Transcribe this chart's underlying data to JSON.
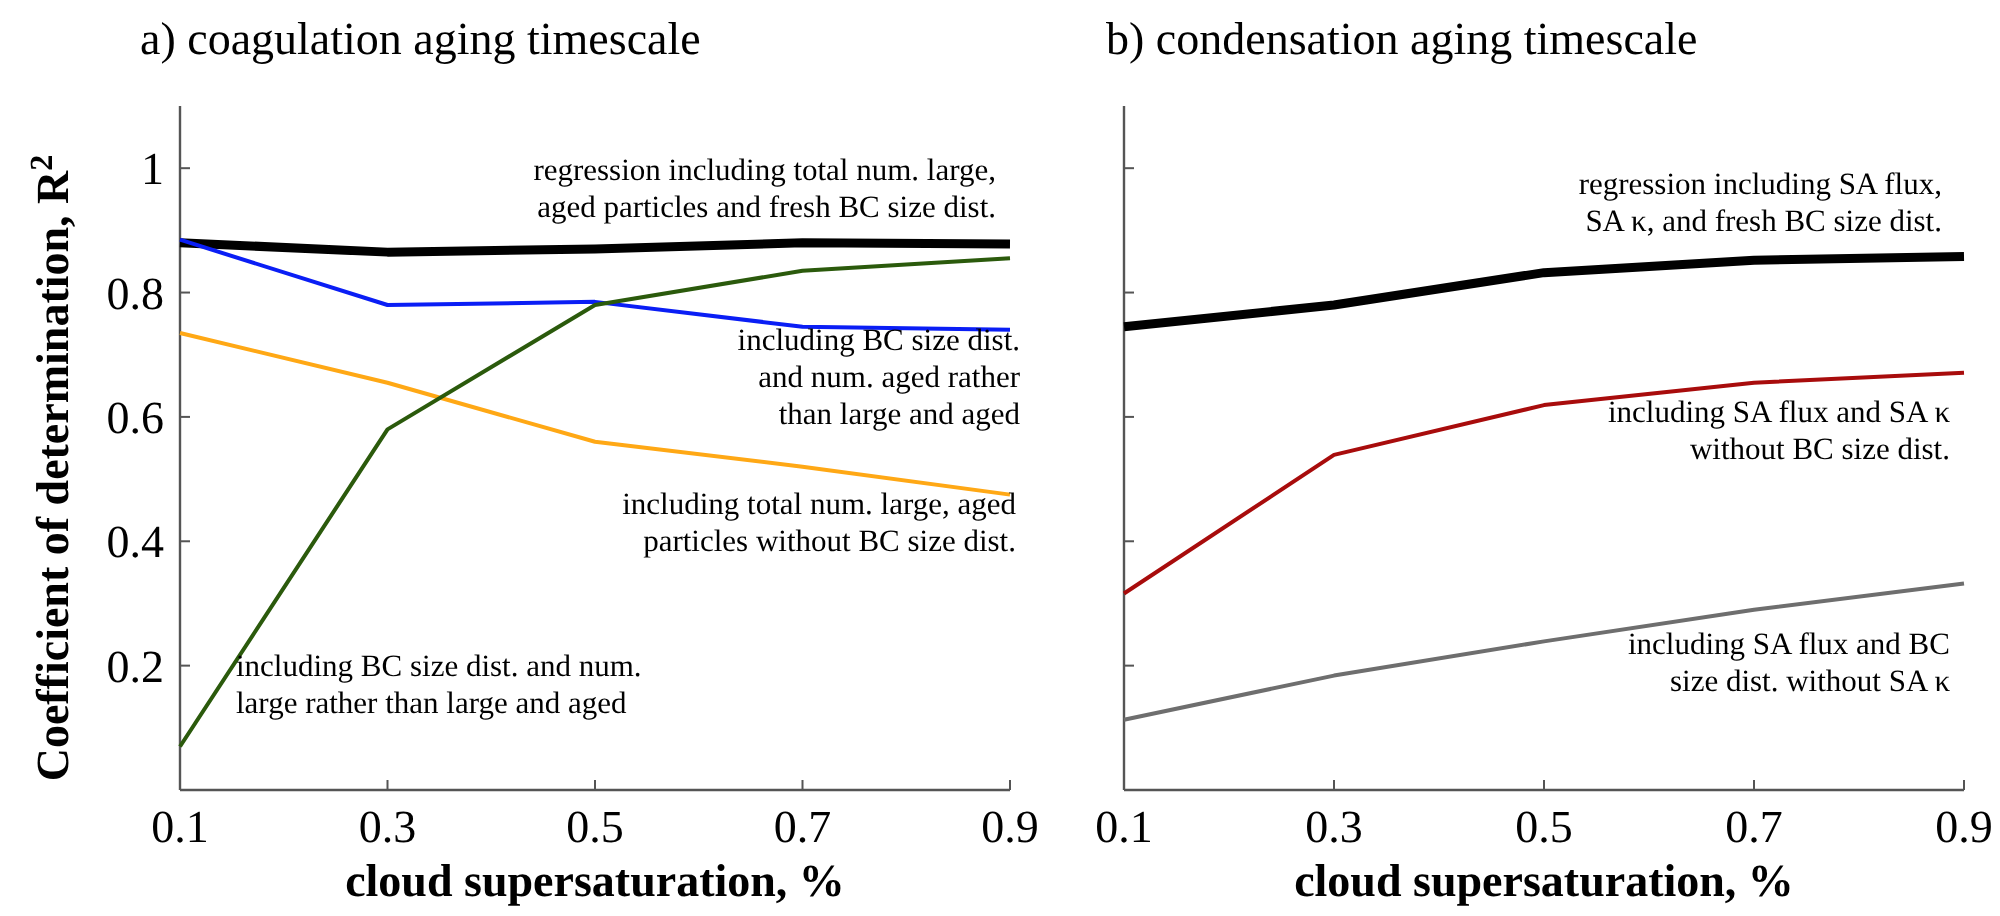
{
  "chart_data": [
    {
      "type": "line",
      "title": "a) coagulation aging timescale",
      "xlabel": "cloud supersaturation, %",
      "ylabel": "Coefficient of determination, R$^{2}$",
      "x": [
        0.1,
        0.3,
        0.5,
        0.7,
        0.9
      ],
      "xlim": [
        0.1,
        0.9
      ],
      "xticks": [
        0.1,
        0.3,
        0.5,
        0.7,
        0.9
      ],
      "ylim": [
        0,
        1.1
      ],
      "yticks": [
        0.2,
        0.4,
        0.6,
        0.8,
        1
      ],
      "grid": false,
      "marker": "none",
      "line_style": "solid",
      "series": [
        {
          "name": "regression including total num. large,\naged particles and fresh BC size dist.",
          "color": "#000000",
          "values": [
            0.88,
            0.865,
            0.87,
            0.88,
            0.878
          ]
        },
        {
          "name": "including BC size dist.\nand num. aged rather\nthan large and aged",
          "color": "#0a1ef5",
          "values": [
            0.885,
            0.78,
            0.785,
            0.745,
            0.74
          ]
        },
        {
          "name": "including total num. large, aged\nparticles without BC size dist.",
          "color": "#ffa815",
          "values": [
            0.735,
            0.655,
            0.56,
            0.52,
            0.475
          ]
        },
        {
          "name": "including BC size dist. and num.\nlarge rather than large and aged",
          "color": "#2b5a0c",
          "values": [
            0.07,
            0.58,
            0.78,
            0.835,
            0.855
          ]
        }
      ]
    },
    {
      "type": "line",
      "title": "b) condensation aging timescale",
      "xlabel": "cloud supersaturation, %",
      "x": [
        0.1,
        0.3,
        0.5,
        0.7,
        0.9
      ],
      "xlim": [
        0.1,
        0.9
      ],
      "xticks": [
        0.1,
        0.3,
        0.5,
        0.7,
        0.9
      ],
      "ylim": [
        0,
        1.1
      ],
      "yticks": [
        0.2,
        0.4,
        0.6,
        0.8,
        1
      ],
      "tick_labels": "x",
      "grid": false,
      "marker": "none",
      "line_style": "solid",
      "series": [
        {
          "name": "regression including SA flux,\nSA κ, and fresh BC size dist.",
          "color": "#000000",
          "values": [
            0.745,
            0.78,
            0.832,
            0.852,
            0.858
          ]
        },
        {
          "name": "including SA flux and SA κ\nwithout BC size dist.",
          "color": "#a80c0c",
          "values": [
            0.316,
            0.539,
            0.619,
            0.655,
            0.671
          ]
        },
        {
          "name": "including SA flux and BC\nsize dist. without SA κ",
          "color": "#6e6e6e",
          "values": [
            0.113,
            0.184,
            0.239,
            0.29,
            0.332
          ]
        }
      ]
    }
  ]
}
